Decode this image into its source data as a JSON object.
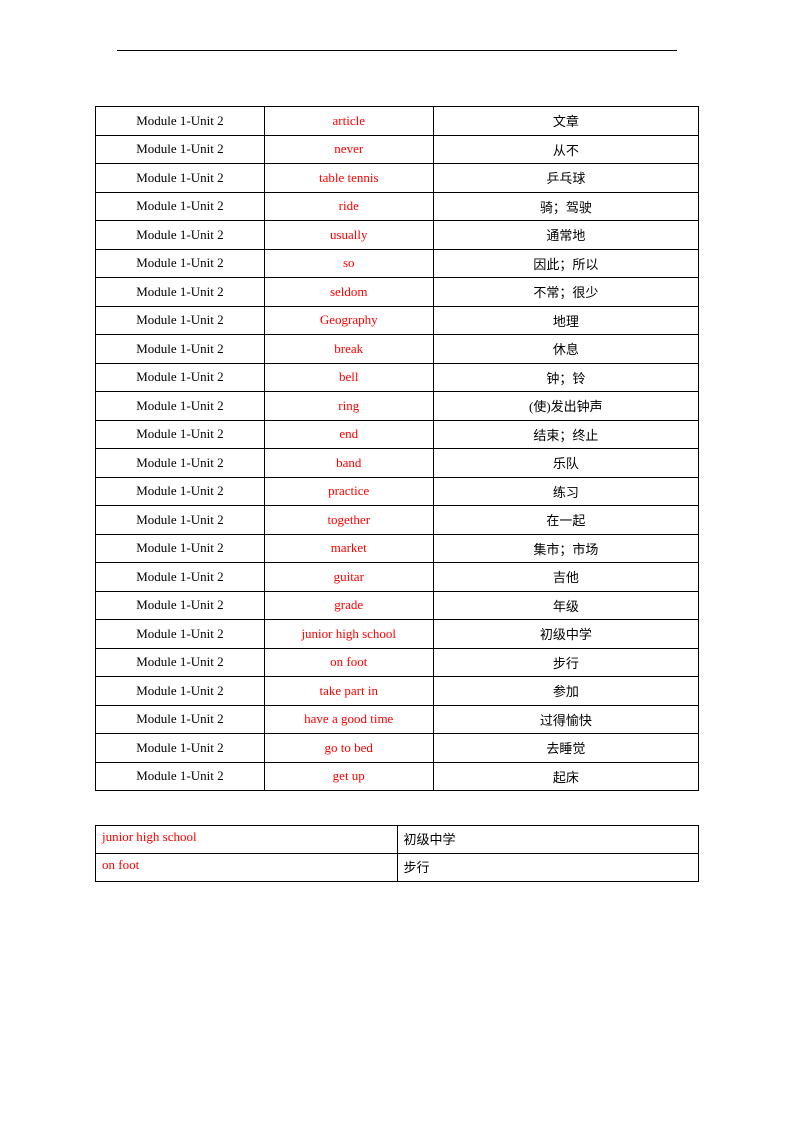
{
  "main_table": {
    "rows": [
      {
        "unit": "Module 1-Unit 2",
        "word": "article",
        "def": "文章"
      },
      {
        "unit": "Module 1-Unit 2",
        "word": "never",
        "def": "从不"
      },
      {
        "unit": "Module 1-Unit 2",
        "word": "table tennis",
        "def": "乒乓球"
      },
      {
        "unit": "Module 1-Unit 2",
        "word": "ride",
        "def": "骑；驾驶"
      },
      {
        "unit": "Module 1-Unit 2",
        "word": "usually",
        "def": "通常地"
      },
      {
        "unit": "Module 1-Unit 2",
        "word": "so",
        "def": "因此；所以"
      },
      {
        "unit": "Module 1-Unit 2",
        "word": "seldom",
        "def": "不常；很少"
      },
      {
        "unit": "Module 1-Unit 2",
        "word": "Geography",
        "def": "地理"
      },
      {
        "unit": "Module 1-Unit 2",
        "word": "break",
        "def": "休息"
      },
      {
        "unit": "Module 1-Unit 2",
        "word": "bell",
        "def": "钟；铃"
      },
      {
        "unit": "Module 1-Unit 2",
        "word": "ring",
        "def": "(使)发出钟声"
      },
      {
        "unit": "Module 1-Unit 2",
        "word": "end",
        "def": "结束；终止"
      },
      {
        "unit": "Module 1-Unit 2",
        "word": "band",
        "def": "乐队"
      },
      {
        "unit": "Module 1-Unit 2",
        "word": "practice",
        "def": "练习"
      },
      {
        "unit": "Module 1-Unit 2",
        "word": "together",
        "def": "在一起"
      },
      {
        "unit": "Module 1-Unit 2",
        "word": "market",
        "def": "集市；市场"
      },
      {
        "unit": "Module 1-Unit 2",
        "word": "guitar",
        "def": "吉他"
      },
      {
        "unit": "Module 1-Unit 2",
        "word": "grade",
        "def": "年级"
      },
      {
        "unit": "Module 1-Unit 2",
        "word": "junior high school",
        "def": "初级中学"
      },
      {
        "unit": "Module 1-Unit 2",
        "word": "on foot",
        "def": "步行"
      },
      {
        "unit": "Module 1-Unit 2",
        "word": "take part in",
        "def": "参加"
      },
      {
        "unit": "Module 1-Unit 2",
        "word": "have a good time",
        "def": "过得愉快"
      },
      {
        "unit": "Module 1-Unit 2",
        "word": "go to bed",
        "def": "去睡觉"
      },
      {
        "unit": "Module 1-Unit 2",
        "word": "get up",
        "def": "起床"
      }
    ]
  },
  "extra_table": {
    "rows": [
      {
        "a": "junior high school",
        "b": "初级中学"
      },
      {
        "a": "on foot",
        "b": "步行"
      }
    ]
  }
}
